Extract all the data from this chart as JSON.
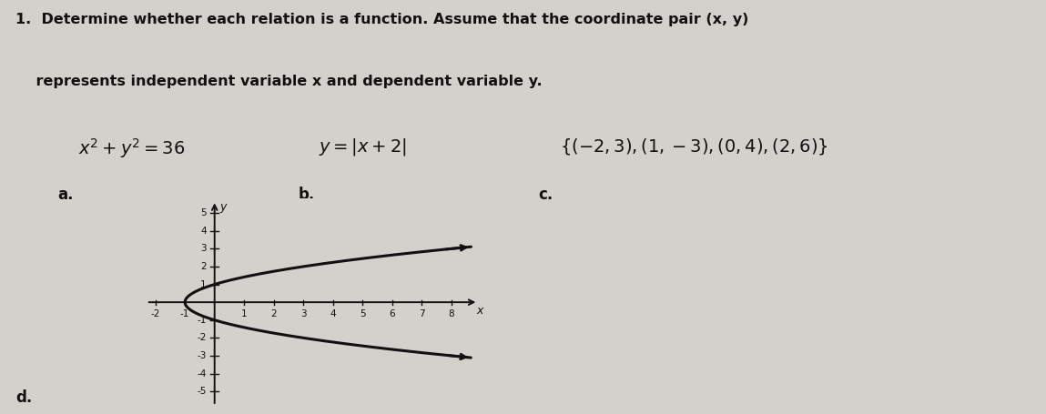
{
  "title_line1": "1.  Determine whether each relation is a function. Assume that the coordinate pair (x, y)",
  "title_line2": "    represents independent variable x and dependent variable y.",
  "label_a": "a.",
  "label_b": "b.",
  "label_c": "c.",
  "label_d": "d.",
  "expr_a": "$x^2 + y^2 = 36$",
  "expr_b": "$y = |x + 2|$",
  "expr_c": "$\\{(-2, 3), (1, -3), (0, 4), (2, 6)\\}$",
  "graph_xlim_lo": -2.3,
  "graph_xlim_hi": 9.0,
  "graph_ylim_lo": -5.8,
  "graph_ylim_hi": 5.8,
  "graph_xlabel": "x",
  "graph_ylabel": "y",
  "page_color": "#d4d0cb",
  "curve_color": "#111111",
  "axis_color": "#111111",
  "text_color": "#111111",
  "title_fontsize": 11.5,
  "label_fontsize": 12,
  "expr_fontsize": 14
}
